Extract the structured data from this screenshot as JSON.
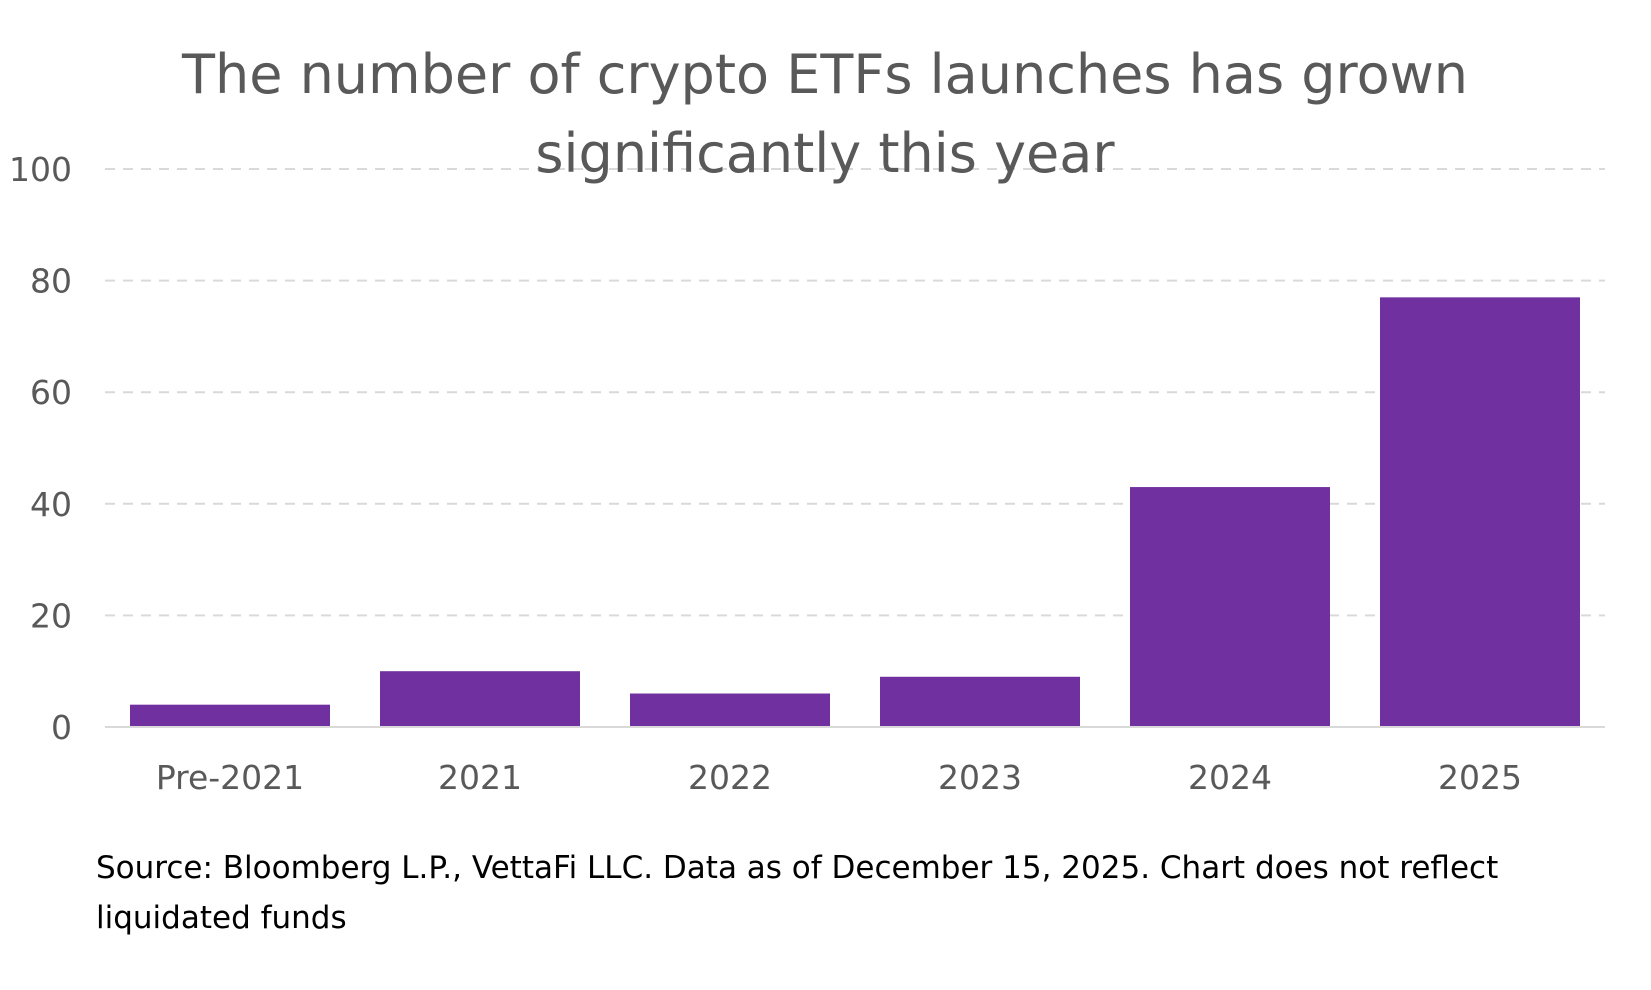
{
  "chart_data": {
    "type": "bar",
    "title_lines": [
      "The number of crypto ETFs launches has grown",
      "significantly this year"
    ],
    "categories": [
      "Pre-2021",
      "2021",
      "2022",
      "2023",
      "2024",
      "2025"
    ],
    "values": [
      4,
      10,
      6,
      9,
      43,
      77
    ],
    "ylim": [
      0,
      100
    ],
    "yticks": [
      0,
      20,
      40,
      60,
      80,
      100
    ],
    "grid": "horizontal-dashed",
    "legend": "none",
    "bar_color": "#7030a0",
    "grid_color": "#d9d9d9",
    "axis_color": "#d9d9d9",
    "text_color": "#595959"
  },
  "source_lines": [
    "Source: Bloomberg L.P., VettaFi LLC.  Data as of December 15, 2025. Chart does not reflect",
    "liquidated funds"
  ]
}
